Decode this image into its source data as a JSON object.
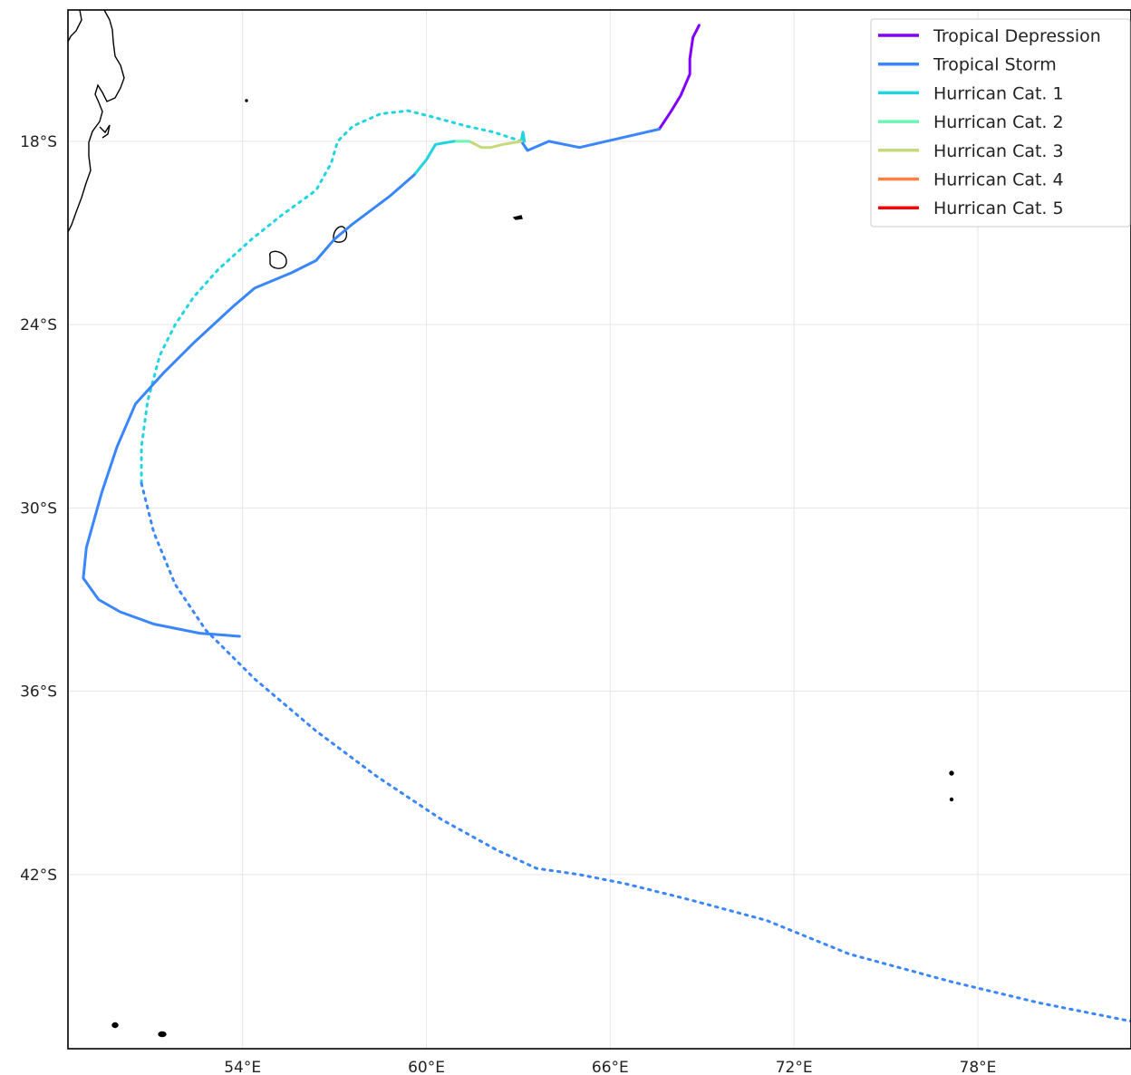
{
  "map": {
    "projection": "PlateCarree",
    "extent": {
      "lon": [
        48.3,
        83.0
      ],
      "lat": [
        -47.7,
        -13.7
      ]
    },
    "gridlines": true,
    "lon_ticks": [
      {
        "value": 54,
        "label": "54°E"
      },
      {
        "value": 60,
        "label": "60°E"
      },
      {
        "value": 66,
        "label": "66°E"
      },
      {
        "value": 72,
        "label": "72°E"
      },
      {
        "value": 78,
        "label": "78°E"
      }
    ],
    "lat_ticks": [
      {
        "value": -18,
        "label": "18°S"
      },
      {
        "value": -24,
        "label": "24°S"
      },
      {
        "value": -30,
        "label": "30°S"
      },
      {
        "value": -36,
        "label": "36°S"
      },
      {
        "value": -42,
        "label": "42°S"
      }
    ]
  },
  "legend": {
    "placement": "top-right",
    "items": [
      {
        "label": "Tropical Depression",
        "color": "#8000ff"
      },
      {
        "label": "Tropical Storm",
        "color": "#3a86ff"
      },
      {
        "label": "Hurrican Cat. 1",
        "color": "#22d3e0"
      },
      {
        "label": "Hurrican Cat. 2",
        "color": "#6cf5b5"
      },
      {
        "label": "Hurrican Cat. 3",
        "color": "#c7d97a"
      },
      {
        "label": "Hurrican Cat. 4",
        "color": "#ff8040"
      },
      {
        "label": "Hurrican Cat. 5",
        "color": "#ff0000"
      }
    ]
  },
  "chart_data": {
    "type": "map-track",
    "observed_track": [
      {
        "category": "Tropical Depression",
        "points": [
          [
            68.9,
            -14.2
          ],
          [
            68.7,
            -14.6
          ],
          [
            68.6,
            -15.3
          ],
          [
            68.6,
            -15.8
          ],
          [
            68.3,
            -16.5
          ],
          [
            68.0,
            -17.0
          ],
          [
            67.6,
            -17.6
          ]
        ]
      },
      {
        "category": "Tropical Storm",
        "points": [
          [
            67.6,
            -17.6
          ],
          [
            66.3,
            -17.9
          ],
          [
            65.0,
            -18.2
          ],
          [
            64.0,
            -18.0
          ],
          [
            63.3,
            -18.3
          ],
          [
            63.1,
            -18.0
          ]
        ]
      },
      {
        "category": "Hurrican Cat. 1",
        "points": [
          [
            63.1,
            -18.0
          ],
          [
            63.15,
            -17.7
          ],
          [
            63.2,
            -18.0
          ]
        ]
      },
      {
        "category": "Hurrican Cat. 3",
        "points": [
          [
            63.1,
            -18.0
          ],
          [
            62.5,
            -18.1
          ],
          [
            62.1,
            -18.2
          ],
          [
            61.8,
            -18.2
          ],
          [
            61.4,
            -18.0
          ]
        ]
      },
      {
        "category": "Hurrican Cat. 2",
        "points": [
          [
            61.4,
            -18.0
          ],
          [
            60.9,
            -18.0
          ]
        ]
      },
      {
        "category": "Hurrican Cat. 1",
        "points": [
          [
            60.9,
            -18.0
          ],
          [
            60.3,
            -18.1
          ],
          [
            60.0,
            -18.6
          ],
          [
            59.6,
            -19.1
          ]
        ]
      },
      {
        "category": "Tropical Storm",
        "points": [
          [
            59.6,
            -19.1
          ],
          [
            58.8,
            -19.8
          ],
          [
            57.6,
            -20.7
          ],
          [
            57.0,
            -21.2
          ],
          [
            56.4,
            -21.9
          ],
          [
            55.6,
            -22.3
          ],
          [
            54.4,
            -22.8
          ],
          [
            53.7,
            -23.4
          ],
          [
            52.4,
            -24.6
          ],
          [
            51.4,
            -25.6
          ],
          [
            50.5,
            -26.6
          ],
          [
            49.9,
            -28.0
          ],
          [
            49.4,
            -29.5
          ],
          [
            48.9,
            -31.3
          ],
          [
            48.8,
            -32.3
          ],
          [
            49.3,
            -33.0
          ],
          [
            50.0,
            -33.4
          ],
          [
            51.1,
            -33.8
          ],
          [
            52.6,
            -34.1
          ],
          [
            53.9,
            -34.2
          ]
        ]
      }
    ],
    "forecast_track": [
      {
        "category": "Hurrican Cat. 1",
        "points": [
          [
            63.1,
            -18.0
          ],
          [
            62.2,
            -17.7
          ],
          [
            61.3,
            -17.5
          ],
          [
            60.2,
            -17.2
          ],
          [
            59.4,
            -17.0
          ],
          [
            58.5,
            -17.1
          ],
          [
            57.6,
            -17.5
          ],
          [
            57.1,
            -18.0
          ],
          [
            56.9,
            -18.7
          ],
          [
            56.4,
            -19.6
          ],
          [
            55.3,
            -20.4
          ],
          [
            54.3,
            -21.2
          ],
          [
            53.2,
            -22.2
          ],
          [
            52.4,
            -23.1
          ],
          [
            51.8,
            -24.0
          ],
          [
            51.3,
            -25.0
          ],
          [
            50.9,
            -26.5
          ],
          [
            50.7,
            -28.0
          ],
          [
            50.7,
            -29.2
          ]
        ]
      },
      {
        "category": "Tropical Storm",
        "points": [
          [
            50.7,
            -29.2
          ],
          [
            51.1,
            -30.8
          ],
          [
            51.8,
            -32.5
          ],
          [
            52.8,
            -34.0
          ],
          [
            54.4,
            -35.6
          ],
          [
            56.4,
            -37.3
          ],
          [
            58.4,
            -38.8
          ],
          [
            60.5,
            -40.2
          ],
          [
            62.3,
            -41.2
          ],
          [
            63.6,
            -41.8
          ],
          [
            65.0,
            -42.0
          ],
          [
            66.5,
            -42.3
          ],
          [
            68.5,
            -42.8
          ],
          [
            71.1,
            -43.5
          ],
          [
            73.8,
            -44.6
          ],
          [
            77.1,
            -45.5
          ],
          [
            80.0,
            -46.2
          ],
          [
            83.0,
            -46.8
          ]
        ]
      }
    ]
  }
}
